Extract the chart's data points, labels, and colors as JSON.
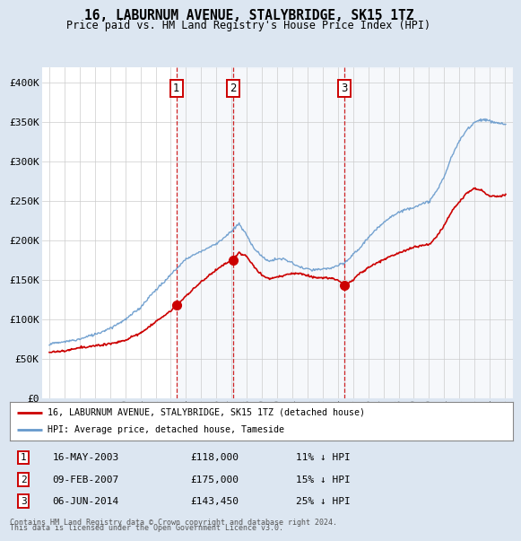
{
  "title": "16, LABURNUM AVENUE, STALYBRIDGE, SK15 1TZ",
  "subtitle": "Price paid vs. HM Land Registry's House Price Index (HPI)",
  "legend_property": "16, LABURNUM AVENUE, STALYBRIDGE, SK15 1TZ (detached house)",
  "legend_hpi": "HPI: Average price, detached house, Tameside",
  "footer1": "Contains HM Land Registry data © Crown copyright and database right 2024.",
  "footer2": "This data is licensed under the Open Government Licence v3.0.",
  "sales": [
    {
      "num": 1,
      "date": "16-MAY-2003",
      "price": "£118,000",
      "pct": "11% ↓ HPI",
      "year": 2003.37
    },
    {
      "num": 2,
      "date": "09-FEB-2007",
      "price": "£175,000",
      "pct": "15% ↓ HPI",
      "year": 2007.11
    },
    {
      "num": 3,
      "date": "06-JUN-2014",
      "price": "£143,450",
      "pct": "25% ↓ HPI",
      "year": 2014.43
    }
  ],
  "sale_prices": [
    118000,
    175000,
    143450
  ],
  "property_line_color": "#cc0000",
  "hpi_line_color": "#6699cc",
  "dashed_line_color": "#cc0000",
  "background_color": "#dce6f1",
  "plot_bg_color": "#ffffff",
  "grid_color": "#cccccc",
  "ylim": [
    0,
    420000
  ],
  "yticks": [
    0,
    50000,
    100000,
    150000,
    200000,
    250000,
    300000,
    350000,
    400000
  ],
  "ytick_labels": [
    "£0",
    "£50K",
    "£100K",
    "£150K",
    "£200K",
    "£250K",
    "£300K",
    "£350K",
    "£400K"
  ],
  "xlim_start": 1994.5,
  "xlim_end": 2025.5,
  "hpi_keypoints": [
    [
      1995.0,
      66000
    ],
    [
      1996.0,
      69000
    ],
    [
      1997.0,
      73000
    ],
    [
      1998.0,
      79000
    ],
    [
      1999.0,
      87000
    ],
    [
      2000.0,
      97000
    ],
    [
      2001.0,
      112000
    ],
    [
      2002.0,
      135000
    ],
    [
      2003.0,
      155000
    ],
    [
      2004.0,
      175000
    ],
    [
      2005.0,
      185000
    ],
    [
      2006.0,
      195000
    ],
    [
      2007.0,
      210000
    ],
    [
      2007.5,
      220000
    ],
    [
      2008.0,
      205000
    ],
    [
      2008.5,
      188000
    ],
    [
      2009.0,
      178000
    ],
    [
      2009.5,
      173000
    ],
    [
      2010.0,
      175000
    ],
    [
      2010.5,
      175000
    ],
    [
      2011.0,
      170000
    ],
    [
      2011.5,
      165000
    ],
    [
      2012.0,
      163000
    ],
    [
      2012.5,
      162000
    ],
    [
      2013.0,
      163000
    ],
    [
      2013.5,
      165000
    ],
    [
      2014.0,
      168000
    ],
    [
      2014.5,
      173000
    ],
    [
      2015.0,
      183000
    ],
    [
      2015.5,
      192000
    ],
    [
      2016.0,
      205000
    ],
    [
      2016.5,
      215000
    ],
    [
      2017.0,
      225000
    ],
    [
      2017.5,
      232000
    ],
    [
      2018.0,
      238000
    ],
    [
      2018.5,
      242000
    ],
    [
      2019.0,
      245000
    ],
    [
      2019.5,
      248000
    ],
    [
      2020.0,
      252000
    ],
    [
      2020.5,
      265000
    ],
    [
      2021.0,
      285000
    ],
    [
      2021.5,
      310000
    ],
    [
      2022.0,
      330000
    ],
    [
      2022.5,
      345000
    ],
    [
      2023.0,
      355000
    ],
    [
      2023.5,
      358000
    ],
    [
      2024.0,
      355000
    ],
    [
      2024.5,
      352000
    ],
    [
      2025.0,
      350000
    ]
  ],
  "prop_keypoints": [
    [
      1995.0,
      58000
    ],
    [
      1996.0,
      60000
    ],
    [
      1997.0,
      63000
    ],
    [
      1998.0,
      65000
    ],
    [
      1999.0,
      68000
    ],
    [
      2000.0,
      73000
    ],
    [
      2001.0,
      82000
    ],
    [
      2002.0,
      96000
    ],
    [
      2003.0,
      110000
    ],
    [
      2003.37,
      118000
    ],
    [
      2004.0,
      130000
    ],
    [
      2005.0,
      148000
    ],
    [
      2006.0,
      163000
    ],
    [
      2007.0,
      175000
    ],
    [
      2007.11,
      175000
    ],
    [
      2007.5,
      185000
    ],
    [
      2008.0,
      178000
    ],
    [
      2008.5,
      165000
    ],
    [
      2009.0,
      155000
    ],
    [
      2009.5,
      150000
    ],
    [
      2010.0,
      152000
    ],
    [
      2010.5,
      155000
    ],
    [
      2011.0,
      158000
    ],
    [
      2011.5,
      158000
    ],
    [
      2012.0,
      155000
    ],
    [
      2012.5,
      153000
    ],
    [
      2013.0,
      153000
    ],
    [
      2013.5,
      152000
    ],
    [
      2014.0,
      150000
    ],
    [
      2014.43,
      143450
    ],
    [
      2015.0,
      150000
    ],
    [
      2015.5,
      158000
    ],
    [
      2016.0,
      165000
    ],
    [
      2016.5,
      170000
    ],
    [
      2017.0,
      175000
    ],
    [
      2017.5,
      180000
    ],
    [
      2018.0,
      185000
    ],
    [
      2018.5,
      188000
    ],
    [
      2019.0,
      192000
    ],
    [
      2019.5,
      193000
    ],
    [
      2020.0,
      195000
    ],
    [
      2020.5,
      205000
    ],
    [
      2021.0,
      220000
    ],
    [
      2021.5,
      238000
    ],
    [
      2022.0,
      250000
    ],
    [
      2022.5,
      262000
    ],
    [
      2023.0,
      268000
    ],
    [
      2023.5,
      265000
    ],
    [
      2024.0,
      258000
    ],
    [
      2024.5,
      258000
    ],
    [
      2025.0,
      260000
    ]
  ]
}
